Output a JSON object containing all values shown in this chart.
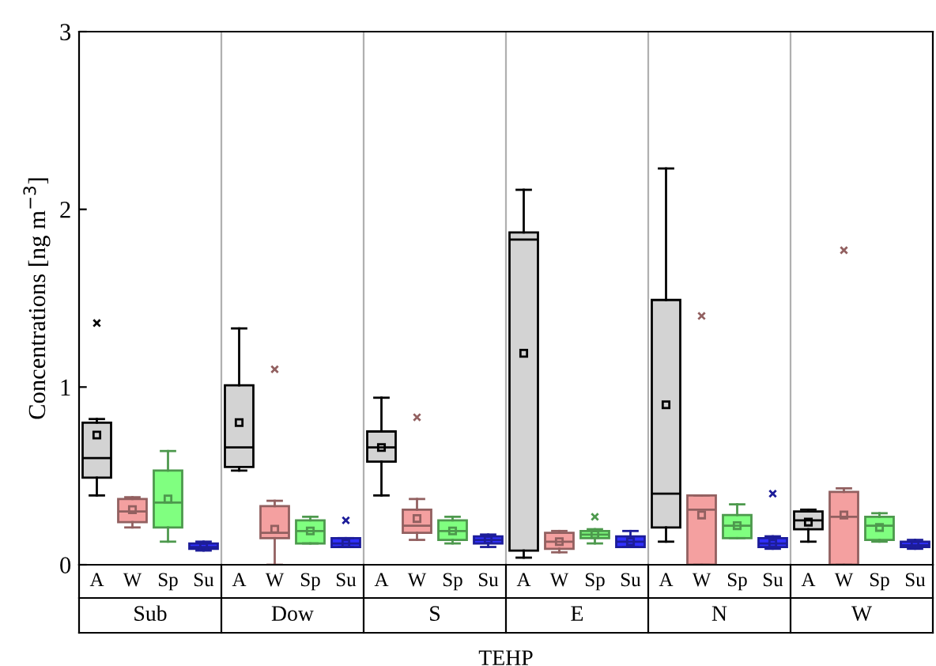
{
  "chart_data": {
    "type": "box",
    "xlabel": "TEHP",
    "ylabel": "Concentrations [ng m$^{−3}$]",
    "categories": [
      "Sub",
      "Dow",
      "S",
      "E",
      "N",
      "W"
    ],
    "ylim": [
      0,
      3
    ],
    "yticks": [
      0,
      1,
      2,
      3
    ],
    "grid": false,
    "legend": "bottom",
    "series": [
      {
        "name": "A",
        "color": "#d3d3d3",
        "boxes": [
          {
            "low": 0.39,
            "q1": 0.49,
            "median": 0.6,
            "q3": 0.8,
            "high": 0.82,
            "mean": 0.73,
            "outliers": [
              1.36
            ]
          },
          {
            "low": 0.53,
            "q1": 0.55,
            "median": 0.66,
            "q3": 1.01,
            "high": 1.33,
            "mean": 0.8
          },
          {
            "low": 0.39,
            "q1": 0.58,
            "median": 0.66,
            "q3": 0.75,
            "high": 0.94,
            "mean": 0.66
          },
          {
            "low": 0.04,
            "q1": 0.08,
            "median": 1.83,
            "q3": 1.87,
            "high": 2.11,
            "mean": 1.19
          },
          {
            "low": 0.13,
            "q1": 0.21,
            "median": 0.4,
            "q3": 1.49,
            "high": 2.23,
            "mean": 0.9
          },
          {
            "low": 0.13,
            "q1": 0.2,
            "median": 0.25,
            "q3": 0.3,
            "high": 0.31,
            "mean": 0.24
          }
        ]
      },
      {
        "name": "W",
        "color": "#f4a0a0",
        "boxes": [
          {
            "low": 0.21,
            "q1": 0.24,
            "median": 0.3,
            "q3": 0.37,
            "high": 0.38,
            "mean": 0.31
          },
          {
            "low": 0.0,
            "q1": 0.15,
            "median": 0.18,
            "q3": 0.33,
            "high": 0.36,
            "mean": 0.2,
            "outliers": [
              1.1
            ]
          },
          {
            "low": 0.14,
            "q1": 0.18,
            "median": 0.22,
            "q3": 0.31,
            "high": 0.37,
            "mean": 0.26,
            "outliers": [
              0.83
            ]
          },
          {
            "low": 0.07,
            "q1": 0.09,
            "median": 0.13,
            "q3": 0.18,
            "high": 0.19,
            "mean": 0.13
          },
          {
            "low": 0.0,
            "q1": 0.0,
            "median": 0.31,
            "q3": 0.39,
            "high": 0.39,
            "mean": 0.28,
            "outliers": [
              1.4
            ]
          },
          {
            "low": 0.0,
            "q1": 0.0,
            "median": 0.27,
            "q3": 0.41,
            "high": 0.43,
            "mean": 0.28,
            "outliers": [
              1.77
            ]
          }
        ]
      },
      {
        "name": "Sp",
        "color": "#80ff80",
        "boxes": [
          {
            "low": 0.13,
            "q1": 0.21,
            "median": 0.35,
            "q3": 0.53,
            "high": 0.64,
            "mean": 0.37
          },
          {
            "low": 0.12,
            "q1": 0.12,
            "median": 0.19,
            "q3": 0.25,
            "high": 0.27,
            "mean": 0.19
          },
          {
            "low": 0.12,
            "q1": 0.14,
            "median": 0.19,
            "q3": 0.25,
            "high": 0.27,
            "mean": 0.19
          },
          {
            "low": 0.12,
            "q1": 0.15,
            "median": 0.17,
            "q3": 0.19,
            "high": 0.2,
            "mean": 0.17,
            "outliers": [
              0.27
            ]
          },
          {
            "low": 0.15,
            "q1": 0.15,
            "median": 0.22,
            "q3": 0.28,
            "high": 0.34,
            "mean": 0.22
          },
          {
            "low": 0.13,
            "q1": 0.14,
            "median": 0.22,
            "q3": 0.27,
            "high": 0.29,
            "mean": 0.21
          }
        ]
      },
      {
        "name": "Su",
        "color": "#3030ff",
        "boxes": [
          {
            "low": 0.08,
            "q1": 0.09,
            "median": 0.1,
            "q3": 0.12,
            "high": 0.13,
            "mean": 0.1
          },
          {
            "low": 0.1,
            "q1": 0.1,
            "median": 0.12,
            "q3": 0.15,
            "high": 0.15,
            "mean": 0.12,
            "outliers": [
              0.25
            ]
          },
          {
            "low": 0.1,
            "q1": 0.12,
            "median": 0.14,
            "q3": 0.16,
            "high": 0.17,
            "mean": 0.14
          },
          {
            "low": 0.1,
            "q1": 0.1,
            "median": 0.13,
            "q3": 0.16,
            "high": 0.19,
            "mean": 0.13
          },
          {
            "low": 0.09,
            "q1": 0.1,
            "median": 0.12,
            "q3": 0.15,
            "high": 0.16,
            "mean": 0.12,
            "outliers": [
              0.4
            ]
          },
          {
            "low": 0.09,
            "q1": 0.1,
            "median": 0.11,
            "q3": 0.13,
            "high": 0.14,
            "mean": 0.11
          }
        ]
      }
    ]
  }
}
